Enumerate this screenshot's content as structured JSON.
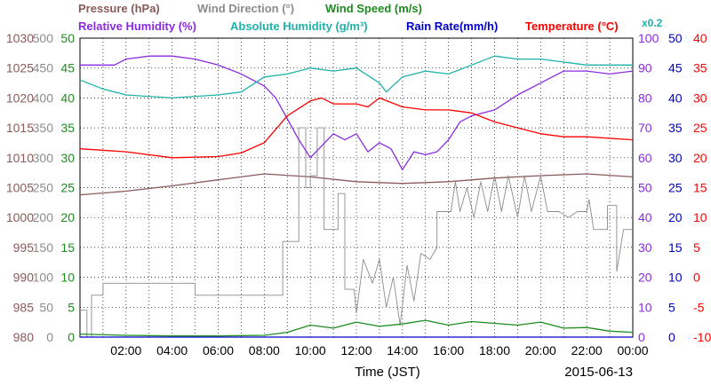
{
  "legend": {
    "row1": [
      {
        "label": "Pressure (hPa)",
        "color": "#8b5a5a"
      },
      {
        "label": "Wind Direction (°)",
        "color": "#8c8c8c"
      },
      {
        "label": "Wind Speed (m/s)",
        "color": "#1e8c1e"
      }
    ],
    "row2": [
      {
        "label": "Relative Humidity (%)",
        "color": "#8a2be2"
      },
      {
        "label": "Absolute Humidity (g/m³)",
        "color": "#20b2aa"
      },
      {
        "label": "Rain Rate(mm/h)",
        "color": "#0000cc"
      },
      {
        "label": "Temperature (°C)",
        "color": "#ff0000"
      }
    ],
    "abs_hum_scale": "x0.2"
  },
  "footer": {
    "xlabel": "Time (JST)",
    "date": "2015-06-13"
  },
  "chart_data": {
    "type": "line",
    "xlabel": "Time (JST)",
    "x_ticks": [
      "02:00",
      "04:00",
      "06:00",
      "08:00",
      "10:00",
      "12:00",
      "14:00",
      "16:00",
      "18:00",
      "20:00",
      "22:00",
      "00:00"
    ],
    "x_range_hours": [
      0,
      24
    ],
    "grid": true,
    "axes": {
      "pressure": {
        "color": "#8b5a5a",
        "range": [
          980,
          1030
        ],
        "ticks": [
          "1030",
          "1025",
          "1020",
          "1015",
          "1010",
          "1005",
          "1000",
          "995",
          "990",
          "985",
          "980"
        ]
      },
      "wind_dir": {
        "color": "#8c8c8c",
        "range": [
          0,
          500
        ],
        "ticks": [
          "500",
          "450",
          "400",
          "350",
          "300",
          "250",
          "200",
          "150",
          "100",
          "50",
          "0"
        ]
      },
      "wind_speed": {
        "color": "#1e8c1e",
        "range": [
          0,
          50
        ],
        "ticks": [
          "50",
          "45",
          "40",
          "35",
          "30",
          "25",
          "20",
          "15",
          "10",
          "5",
          "0"
        ]
      },
      "humidity": {
        "color": "#8a2be2",
        "range": [
          0,
          100
        ],
        "ticks": [
          "100",
          "90",
          "80",
          "70",
          "60",
          "50",
          "40",
          "30",
          "20",
          "10",
          "0"
        ]
      },
      "rain": {
        "color": "#0000cc",
        "range": [
          0,
          50
        ],
        "ticks": [
          "50",
          "45",
          "40",
          "35",
          "30",
          "25",
          "20",
          "15",
          "10",
          "5",
          "0"
        ]
      },
      "temperature": {
        "color": "#ff0000",
        "range": [
          -10,
          40
        ],
        "ticks": [
          "40",
          "35",
          "30",
          "25",
          "20",
          "15",
          "10",
          "5",
          "0",
          "-5",
          "-10"
        ]
      }
    },
    "series": [
      {
        "name": "Pressure (hPa)",
        "axis": "pressure",
        "color": "#8b5a5a",
        "points": [
          [
            0,
            1003.8
          ],
          [
            2,
            1004.4
          ],
          [
            4,
            1005.3
          ],
          [
            6,
            1006.3
          ],
          [
            8,
            1007.3
          ],
          [
            10,
            1006.8
          ],
          [
            12,
            1006.0
          ],
          [
            14,
            1005.7
          ],
          [
            16,
            1006.0
          ],
          [
            18,
            1006.6
          ],
          [
            20,
            1007.0
          ],
          [
            22,
            1007.3
          ],
          [
            24,
            1006.8
          ]
        ]
      },
      {
        "name": "Wind Direction (°)",
        "axis": "wind_dir",
        "color": "#8c8c8c",
        "points": [
          [
            0,
            45
          ],
          [
            0.3,
            45
          ],
          [
            0.3,
            0
          ],
          [
            0.5,
            0
          ],
          [
            0.5,
            70
          ],
          [
            1,
            70
          ],
          [
            1,
            90
          ],
          [
            5,
            90
          ],
          [
            5,
            70
          ],
          [
            8.8,
            70
          ],
          [
            8.8,
            160
          ],
          [
            9.5,
            160
          ],
          [
            9.5,
            350
          ],
          [
            9.8,
            350
          ],
          [
            9.8,
            250
          ],
          [
            10,
            250
          ],
          [
            10,
            270
          ],
          [
            10.3,
            270
          ],
          [
            10.3,
            350
          ],
          [
            10.6,
            350
          ],
          [
            10.6,
            180
          ],
          [
            11.2,
            180
          ],
          [
            11.2,
            240
          ],
          [
            11.5,
            240
          ],
          [
            11.5,
            80
          ],
          [
            11.9,
            80
          ],
          [
            12,
            40
          ],
          [
            12.3,
            130
          ],
          [
            12.7,
            90
          ],
          [
            13,
            130
          ],
          [
            13.3,
            50
          ],
          [
            13.6,
            100
          ],
          [
            13.9,
            20
          ],
          [
            14.2,
            120
          ],
          [
            14.5,
            60
          ],
          [
            14.8,
            140
          ],
          [
            15.2,
            130
          ],
          [
            15.5,
            150
          ],
          [
            15.5,
            210
          ],
          [
            16.1,
            210
          ],
          [
            16.3,
            260
          ],
          [
            16.5,
            210
          ],
          [
            16.8,
            250
          ],
          [
            17.1,
            200
          ],
          [
            17.4,
            260
          ],
          [
            17.7,
            210
          ],
          [
            18,
            270
          ],
          [
            18.3,
            210
          ],
          [
            18.6,
            270
          ],
          [
            19,
            200
          ],
          [
            19.3,
            270
          ],
          [
            19.6,
            210
          ],
          [
            20,
            270
          ],
          [
            20.3,
            210
          ],
          [
            20.8,
            210
          ],
          [
            21.2,
            200
          ],
          [
            21.6,
            210
          ],
          [
            22,
            210
          ],
          [
            22.1,
            230
          ],
          [
            22.3,
            180
          ],
          [
            22.9,
            180
          ],
          [
            22.9,
            220
          ],
          [
            23.3,
            220
          ],
          [
            23.3,
            110
          ],
          [
            23.6,
            180
          ],
          [
            24,
            180
          ]
        ]
      },
      {
        "name": "Relative Humidity (%)",
        "axis": "humidity",
        "color": "#8a2be2",
        "points": [
          [
            0,
            91
          ],
          [
            1.5,
            91
          ],
          [
            2,
            93
          ],
          [
            3,
            94
          ],
          [
            4,
            94
          ],
          [
            5,
            93
          ],
          [
            6,
            91
          ],
          [
            7,
            88
          ],
          [
            8,
            84
          ],
          [
            8.5,
            80
          ],
          [
            9,
            73
          ],
          [
            9.5,
            66
          ],
          [
            10,
            60
          ],
          [
            10.5,
            64
          ],
          [
            11,
            68
          ],
          [
            11.5,
            66
          ],
          [
            12,
            68
          ],
          [
            12.5,
            62
          ],
          [
            13,
            65
          ],
          [
            13.5,
            63
          ],
          [
            14,
            56
          ],
          [
            14.5,
            62
          ],
          [
            15,
            61
          ],
          [
            15.5,
            62
          ],
          [
            16,
            66
          ],
          [
            16.5,
            72
          ],
          [
            17,
            74
          ],
          [
            18,
            76
          ],
          [
            19,
            81
          ],
          [
            20,
            85
          ],
          [
            21,
            89
          ],
          [
            22,
            89
          ],
          [
            23,
            88
          ],
          [
            24,
            89
          ]
        ]
      },
      {
        "name": "Absolute Humidity (g/m³)",
        "axis": "humidity",
        "color": "#20b2aa",
        "points": [
          [
            0,
            86
          ],
          [
            1,
            83
          ],
          [
            2,
            81
          ],
          [
            4,
            80
          ],
          [
            6,
            81
          ],
          [
            7,
            82
          ],
          [
            8,
            87
          ],
          [
            9,
            88
          ],
          [
            10,
            90
          ],
          [
            11,
            89
          ],
          [
            12,
            90
          ],
          [
            13,
            85
          ],
          [
            13.3,
            82
          ],
          [
            14,
            87
          ],
          [
            15,
            89
          ],
          [
            16,
            88
          ],
          [
            17,
            91
          ],
          [
            18,
            94
          ],
          [
            19,
            93
          ],
          [
            20,
            93
          ],
          [
            21,
            92
          ],
          [
            22,
            91
          ],
          [
            24,
            91
          ]
        ]
      },
      {
        "name": "Rain Rate(mm/h)",
        "axis": "rain",
        "color": "#0000cc",
        "points": [
          [
            0,
            0
          ],
          [
            24,
            0
          ]
        ]
      },
      {
        "name": "Temperature (°C)",
        "axis": "temperature",
        "color": "#ff0000",
        "points": [
          [
            0,
            21.5
          ],
          [
            2,
            21.0
          ],
          [
            4,
            20.0
          ],
          [
            6,
            20.2
          ],
          [
            7,
            20.8
          ],
          [
            8,
            22.5
          ],
          [
            9,
            27
          ],
          [
            10,
            29.5
          ],
          [
            10.5,
            30
          ],
          [
            11,
            29
          ],
          [
            12,
            29
          ],
          [
            12.5,
            28.5
          ],
          [
            13,
            30
          ],
          [
            14,
            28.5
          ],
          [
            15,
            28
          ],
          [
            16,
            28
          ],
          [
            17,
            27.5
          ],
          [
            18,
            26
          ],
          [
            19,
            25
          ],
          [
            20,
            24
          ],
          [
            21,
            23.5
          ],
          [
            22,
            23.5
          ],
          [
            24,
            23
          ]
        ]
      },
      {
        "name": "Wind Speed (m/s)",
        "axis": "wind_speed",
        "color": "#1e8c1e",
        "points": [
          [
            0,
            0.5
          ],
          [
            2,
            0.3
          ],
          [
            4,
            0.2
          ],
          [
            6,
            0.2
          ],
          [
            8,
            0.3
          ],
          [
            9,
            0.8
          ],
          [
            10,
            2.0
          ],
          [
            11,
            1.5
          ],
          [
            12,
            2.5
          ],
          [
            13,
            1.8
          ],
          [
            14,
            2.2
          ],
          [
            15,
            2.8
          ],
          [
            16,
            2.0
          ],
          [
            17,
            2.6
          ],
          [
            18,
            2.3
          ],
          [
            19,
            2.0
          ],
          [
            20,
            2.5
          ],
          [
            21,
            1.5
          ],
          [
            22,
            1.6
          ],
          [
            23,
            1.0
          ],
          [
            24,
            0.8
          ]
        ]
      }
    ]
  }
}
